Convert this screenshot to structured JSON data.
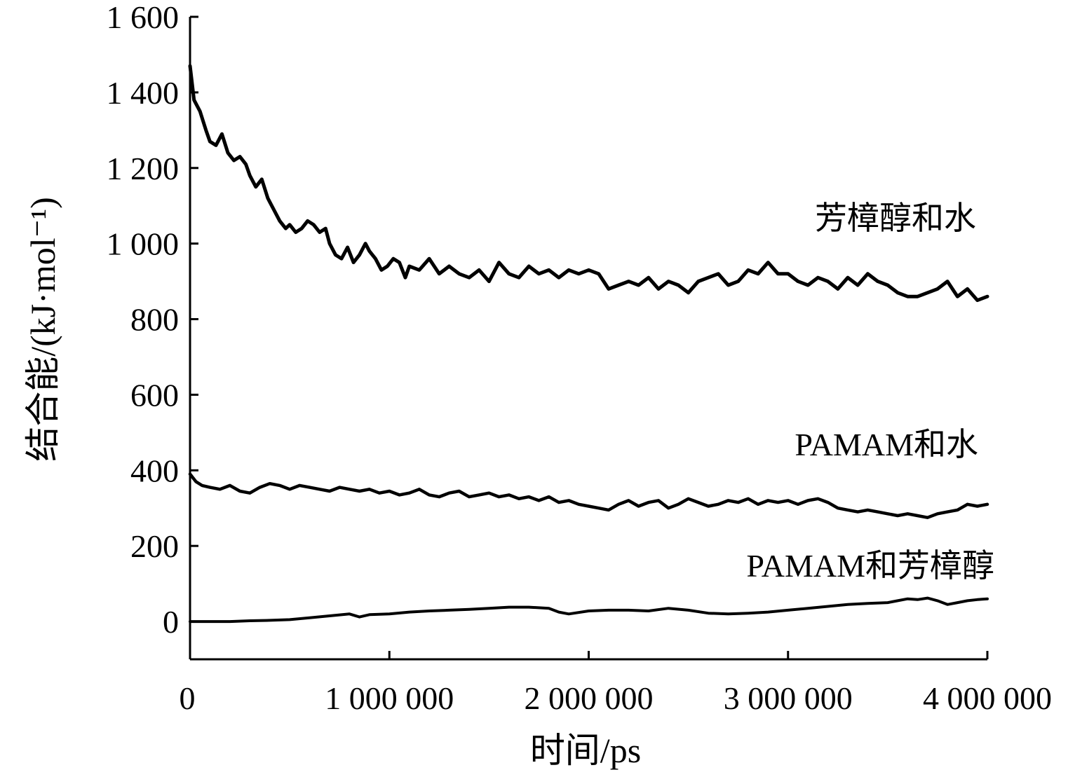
{
  "chart_data": {
    "type": "line",
    "title": "",
    "xlabel": "时间/ps",
    "ylabel": "结合能/(kJ·mol⁻¹)",
    "xlim": [
      0,
      4000000
    ],
    "ylim": [
      -100,
      1600
    ],
    "grid": false,
    "legend": "none",
    "x_ticks": [
      {
        "value": 0,
        "label": "0"
      },
      {
        "value": 1000000,
        "label": "1 000 000"
      },
      {
        "value": 2000000,
        "label": "2 000 000"
      },
      {
        "value": 3000000,
        "label": "3 000 000"
      },
      {
        "value": 4000000,
        "label": "4 000 000"
      }
    ],
    "y_ticks": [
      {
        "value": 0,
        "label": "0"
      },
      {
        "value": 200,
        "label": "200"
      },
      {
        "value": 400,
        "label": "400"
      },
      {
        "value": 600,
        "label": "600"
      },
      {
        "value": 800,
        "label": "800"
      },
      {
        "value": 1000,
        "label": "1 000"
      },
      {
        "value": 1200,
        "label": "1 200"
      },
      {
        "value": 1400,
        "label": "1 400"
      },
      {
        "value": 1600,
        "label": "1 600"
      }
    ],
    "series": [
      {
        "name": "芳樟醇和水",
        "color": "#000000",
        "x": [
          0,
          20000,
          50000,
          80000,
          100000,
          130000,
          160000,
          190000,
          220000,
          250000,
          280000,
          300000,
          330000,
          360000,
          390000,
          420000,
          450000,
          480000,
          500000,
          530000,
          560000,
          590000,
          620000,
          650000,
          680000,
          700000,
          730000,
          760000,
          790000,
          820000,
          850000,
          880000,
          900000,
          930000,
          960000,
          990000,
          1020000,
          1050000,
          1080000,
          1100000,
          1150000,
          1200000,
          1250000,
          1300000,
          1350000,
          1400000,
          1450000,
          1500000,
          1550000,
          1600000,
          1650000,
          1700000,
          1750000,
          1800000,
          1850000,
          1900000,
          1950000,
          2000000,
          2050000,
          2100000,
          2150000,
          2200000,
          2250000,
          2300000,
          2350000,
          2400000,
          2450000,
          2500000,
          2550000,
          2600000,
          2650000,
          2700000,
          2750000,
          2800000,
          2850000,
          2900000,
          2950000,
          3000000,
          3050000,
          3100000,
          3150000,
          3200000,
          3250000,
          3300000,
          3350000,
          3400000,
          3450000,
          3500000,
          3550000,
          3600000,
          3650000,
          3700000,
          3750000,
          3800000,
          3850000,
          3900000,
          3950000,
          4000000
        ],
        "values": [
          1470,
          1380,
          1350,
          1300,
          1270,
          1260,
          1290,
          1240,
          1220,
          1230,
          1210,
          1180,
          1150,
          1170,
          1120,
          1090,
          1060,
          1040,
          1050,
          1030,
          1040,
          1060,
          1050,
          1030,
          1040,
          1000,
          970,
          960,
          990,
          950,
          970,
          1000,
          980,
          960,
          930,
          940,
          960,
          950,
          910,
          940,
          930,
          960,
          920,
          940,
          920,
          910,
          930,
          900,
          950,
          920,
          910,
          940,
          920,
          930,
          910,
          930,
          920,
          930,
          920,
          880,
          890,
          900,
          890,
          910,
          880,
          900,
          890,
          870,
          900,
          910,
          920,
          890,
          900,
          930,
          920,
          950,
          920,
          920,
          900,
          890,
          910,
          900,
          880,
          910,
          890,
          920,
          900,
          890,
          870,
          860,
          860,
          870,
          880,
          900,
          860,
          880,
          850,
          860
        ]
      },
      {
        "name": "PAMAM和水",
        "color": "#000000",
        "x": [
          0,
          30000,
          60000,
          100000,
          150000,
          200000,
          250000,
          300000,
          350000,
          400000,
          450000,
          500000,
          550000,
          600000,
          650000,
          700000,
          750000,
          800000,
          850000,
          900000,
          950000,
          1000000,
          1050000,
          1100000,
          1150000,
          1200000,
          1250000,
          1300000,
          1350000,
          1400000,
          1450000,
          1500000,
          1550000,
          1600000,
          1650000,
          1700000,
          1750000,
          1800000,
          1850000,
          1900000,
          1950000,
          2000000,
          2050000,
          2100000,
          2150000,
          2200000,
          2250000,
          2300000,
          2350000,
          2400000,
          2450000,
          2500000,
          2550000,
          2600000,
          2650000,
          2700000,
          2750000,
          2800000,
          2850000,
          2900000,
          2950000,
          3000000,
          3050000,
          3100000,
          3150000,
          3200000,
          3250000,
          3300000,
          3350000,
          3400000,
          3450000,
          3500000,
          3550000,
          3600000,
          3650000,
          3700000,
          3750000,
          3800000,
          3850000,
          3900000,
          3950000,
          4000000
        ],
        "values": [
          390,
          370,
          360,
          355,
          350,
          360,
          345,
          340,
          355,
          365,
          360,
          350,
          360,
          355,
          350,
          345,
          355,
          350,
          345,
          350,
          340,
          345,
          335,
          340,
          350,
          335,
          330,
          340,
          345,
          330,
          335,
          340,
          330,
          335,
          325,
          330,
          320,
          330,
          315,
          320,
          310,
          305,
          300,
          295,
          310,
          320,
          305,
          315,
          320,
          300,
          310,
          325,
          315,
          305,
          310,
          320,
          315,
          325,
          310,
          320,
          315,
          320,
          310,
          320,
          325,
          315,
          300,
          295,
          290,
          295,
          290,
          285,
          280,
          285,
          280,
          275,
          285,
          290,
          295,
          310,
          305,
          310
        ]
      },
      {
        "name": "PAMAM和芳樟醇",
        "color": "#000000",
        "x": [
          0,
          100000,
          200000,
          300000,
          400000,
          500000,
          600000,
          700000,
          800000,
          850000,
          900000,
          1000000,
          1100000,
          1200000,
          1300000,
          1400000,
          1500000,
          1600000,
          1700000,
          1800000,
          1850000,
          1900000,
          2000000,
          2100000,
          2200000,
          2300000,
          2400000,
          2500000,
          2600000,
          2700000,
          2800000,
          2900000,
          3000000,
          3100000,
          3200000,
          3300000,
          3400000,
          3500000,
          3550000,
          3600000,
          3650000,
          3700000,
          3750000,
          3800000,
          3850000,
          3900000,
          3950000,
          4000000
        ],
        "values": [
          0,
          0,
          0,
          2,
          3,
          5,
          10,
          15,
          20,
          12,
          18,
          20,
          25,
          28,
          30,
          32,
          35,
          38,
          38,
          35,
          25,
          20,
          28,
          30,
          30,
          28,
          35,
          30,
          22,
          20,
          22,
          25,
          30,
          35,
          40,
          45,
          48,
          50,
          55,
          60,
          58,
          62,
          55,
          45,
          50,
          55,
          58,
          60
        ]
      }
    ]
  },
  "series_labels": {
    "linalool_water": "芳樟醇和水",
    "pamam_water": "PAMAM和水",
    "pamam_linalool": "PAMAM和芳樟醇"
  }
}
